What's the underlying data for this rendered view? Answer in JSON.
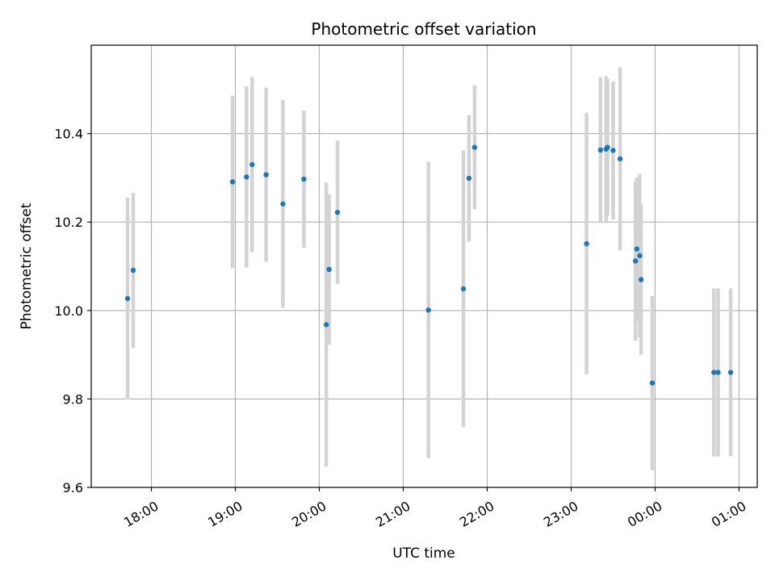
{
  "chart_data": {
    "type": "scatter",
    "title": "Photometric offset variation",
    "xlabel": "UTC time",
    "ylabel": "Photometric offset",
    "x_axis_kind": "time",
    "xlim": [
      "17:17",
      "01:13"
    ],
    "ylim": [
      9.6,
      10.6
    ],
    "x_ticks": [
      "18:00",
      "19:00",
      "20:00",
      "21:00",
      "22:00",
      "23:00",
      "00:00",
      "01:00"
    ],
    "y_ticks": [
      9.6,
      9.8,
      10.0,
      10.2,
      10.4
    ],
    "y_tick_labels": [
      "9.6",
      "9.8",
      "10.0",
      "10.2",
      "10.4"
    ],
    "grid": true,
    "point_color": "#1f77b4",
    "errorbar_color": "#d3d3d3",
    "points": [
      {
        "time": "17:43",
        "y": 10.027,
        "err": 0.228
      },
      {
        "time": "17:47",
        "y": 10.091,
        "err": 0.175
      },
      {
        "time": "18:58",
        "y": 10.291,
        "err": 0.195
      },
      {
        "time": "19:08",
        "y": 10.302,
        "err": 0.205
      },
      {
        "time": "19:12",
        "y": 10.33,
        "err": 0.198
      },
      {
        "time": "19:22",
        "y": 10.307,
        "err": 0.197
      },
      {
        "time": "19:34",
        "y": 10.241,
        "err": 0.235
      },
      {
        "time": "19:49",
        "y": 10.297,
        "err": 0.155
      },
      {
        "time": "20:05",
        "y": 9.968,
        "err": 0.321
      },
      {
        "time": "20:07",
        "y": 10.093,
        "err": 0.17
      },
      {
        "time": "20:13",
        "y": 10.222,
        "err": 0.162
      },
      {
        "time": "21:18",
        "y": 10.001,
        "err": 0.335
      },
      {
        "time": "21:43",
        "y": 10.049,
        "err": 0.313
      },
      {
        "time": "21:47",
        "y": 10.299,
        "err": 0.143
      },
      {
        "time": "21:51",
        "y": 10.369,
        "err": 0.14
      },
      {
        "time": "23:11",
        "y": 10.151,
        "err": 0.296
      },
      {
        "time": "23:21",
        "y": 10.363,
        "err": 0.165
      },
      {
        "time": "23:25",
        "y": 10.365,
        "err": 0.165
      },
      {
        "time": "23:26",
        "y": 10.369,
        "err": 0.155
      },
      {
        "time": "23:30",
        "y": 10.362,
        "err": 0.156
      },
      {
        "time": "23:35",
        "y": 10.343,
        "err": 0.207
      },
      {
        "time": "23:46",
        "y": 10.112,
        "err": 0.18
      },
      {
        "time": "23:47",
        "y": 10.139,
        "err": 0.162
      },
      {
        "time": "23:49",
        "y": 10.124,
        "err": 0.185
      },
      {
        "time": "23:50",
        "y": 10.07,
        "err": 0.17
      },
      {
        "time": "23:58",
        "y": 9.836,
        "err": 0.197
      },
      {
        "time": "00:42",
        "y": 9.86,
        "err": 0.19
      },
      {
        "time": "00:45",
        "y": 9.86,
        "err": 0.19
      },
      {
        "time": "00:54",
        "y": 9.86,
        "err": 0.19
      }
    ]
  }
}
